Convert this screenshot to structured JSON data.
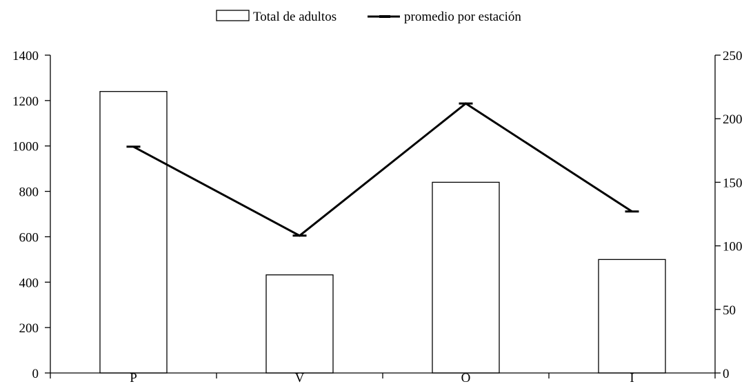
{
  "chart_data": {
    "type": "bar",
    "title": "",
    "xlabel": "",
    "ylabel": "",
    "y2label": "",
    "categories": [
      "P",
      "V",
      "O",
      "I"
    ],
    "legend": {
      "position": "top-center",
      "entries": [
        {
          "label": "Total de adultos",
          "kind": "bar"
        },
        {
          "label": "promedio por estación",
          "kind": "line"
        }
      ]
    },
    "series": [
      {
        "name": "Total de adultos",
        "type": "bar",
        "axis": "left",
        "values": [
          1240,
          432,
          840,
          500
        ]
      },
      {
        "name": "promedio por estación",
        "type": "line",
        "axis": "right",
        "values": [
          178,
          108,
          212,
          127
        ]
      }
    ],
    "y_left": {
      "min": 0,
      "max": 1400,
      "ticks": [
        0,
        200,
        400,
        600,
        800,
        1000,
        1200,
        1400
      ]
    },
    "y_right": {
      "min": 0,
      "max": 250,
      "ticks": [
        0,
        50,
        100,
        150,
        200,
        250
      ]
    },
    "grid": false,
    "colors": {
      "bar_fill": "#ffffff",
      "bar_stroke": "#000000",
      "line": "#000000",
      "axis": "#000000"
    }
  }
}
